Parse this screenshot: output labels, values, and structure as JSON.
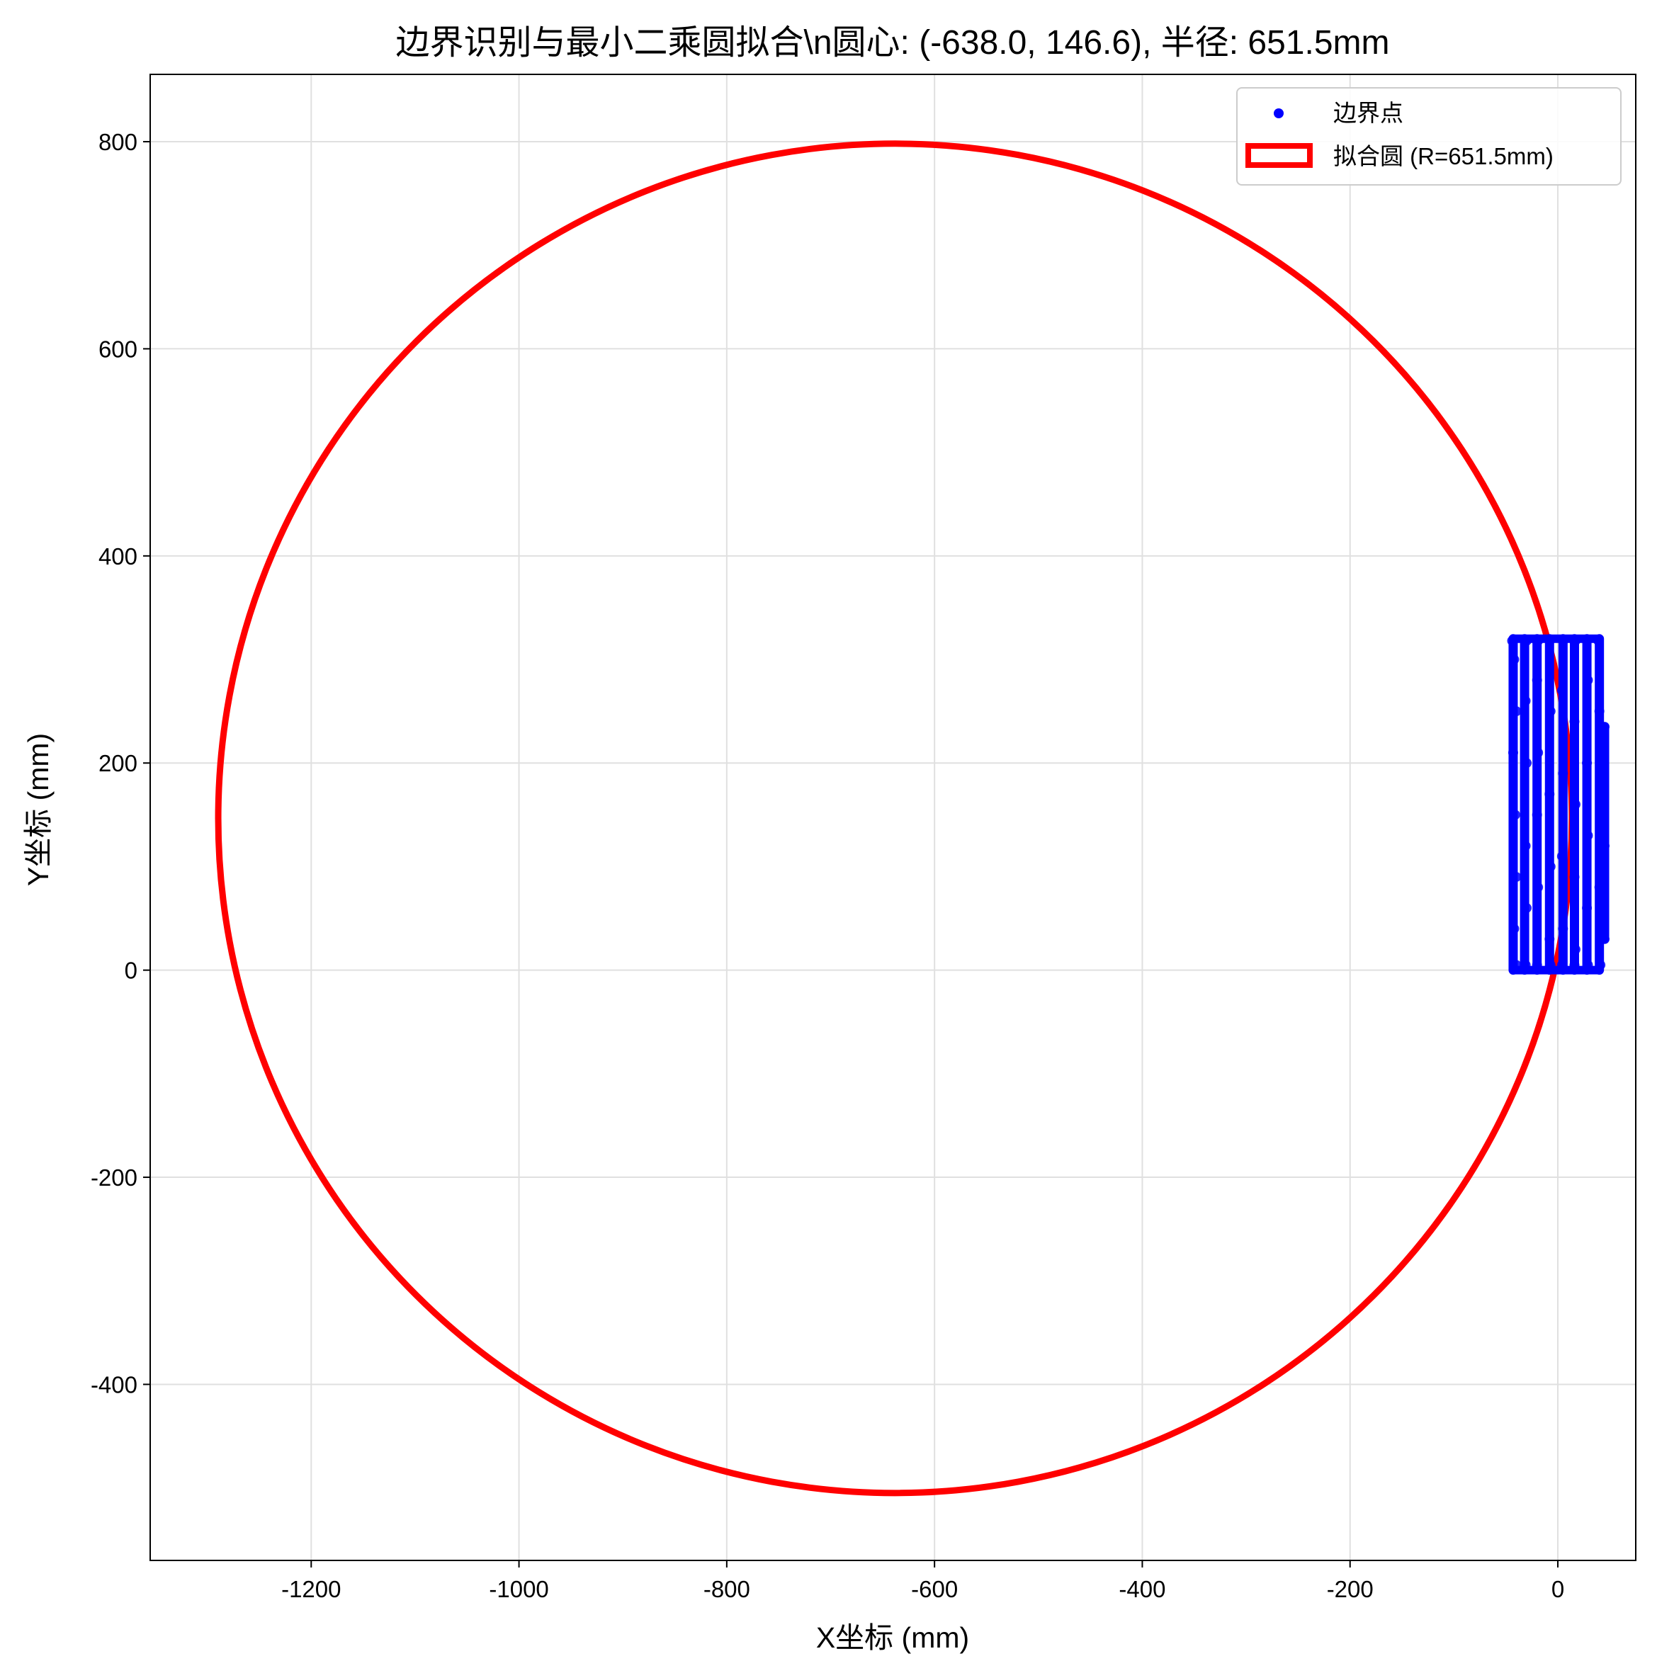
{
  "chart_data": {
    "type": "scatter",
    "title": "边界识别与最小二乘圆拟合\\n圆心: (-638.0, 146.6), 半径: 651.5mm",
    "xlabel": "X坐标 (mm)",
    "ylabel": "Y坐标 (mm)",
    "xlim": [
      -1355,
      75
    ],
    "ylim": [
      -570,
      865
    ],
    "x_ticks": [
      -1200,
      -1000,
      -800,
      -600,
      -400,
      -200,
      0
    ],
    "y_ticks": [
      -400,
      -200,
      0,
      200,
      400,
      600,
      800
    ],
    "x_tick_labels": [
      "-1200",
      "-1000",
      "-800",
      "-600",
      "-400",
      "-200",
      "0"
    ],
    "y_tick_labels": [
      "-400",
      "-200",
      "0",
      "200",
      "400",
      "600",
      "800"
    ],
    "grid": true,
    "legend_position": "top-right",
    "colors": {
      "points": "#0000ff",
      "circle": "#ff0000",
      "grid": "#e0e0e0"
    },
    "series": [
      {
        "name": "边界点",
        "kind": "scatter",
        "region": {
          "x_range": [
            -45,
            45
          ],
          "y_range": [
            0,
            320
          ]
        },
        "sweep_columns_x": [
          -43,
          -32,
          -20,
          -8,
          5,
          16,
          28,
          40,
          45
        ],
        "points": [
          [
            -44,
            318
          ],
          [
            -42,
            300
          ],
          [
            -40,
            250
          ],
          [
            -43,
            210
          ],
          [
            -41,
            150
          ],
          [
            -40,
            90
          ],
          [
            -42,
            40
          ],
          [
            -40,
            5
          ],
          [
            -30,
            318
          ],
          [
            -31,
            260
          ],
          [
            -30,
            200
          ],
          [
            -31,
            120
          ],
          [
            -30,
            60
          ],
          [
            -31,
            5
          ],
          [
            -19,
            318
          ],
          [
            -20,
            280
          ],
          [
            -19,
            210
          ],
          [
            -20,
            150
          ],
          [
            -19,
            80
          ],
          [
            -20,
            5
          ],
          [
            -8,
            318
          ],
          [
            -7,
            250
          ],
          [
            -8,
            170
          ],
          [
            -7,
            100
          ],
          [
            -8,
            30
          ],
          [
            -7,
            5
          ],
          [
            5,
            318
          ],
          [
            4,
            270
          ],
          [
            5,
            190
          ],
          [
            4,
            110
          ],
          [
            5,
            40
          ],
          [
            4,
            5
          ],
          [
            17,
            318
          ],
          [
            16,
            240
          ],
          [
            17,
            160
          ],
          [
            16,
            90
          ],
          [
            17,
            20
          ],
          [
            16,
            5
          ],
          [
            28,
            318
          ],
          [
            29,
            280
          ],
          [
            28,
            200
          ],
          [
            29,
            130
          ],
          [
            28,
            60
          ],
          [
            29,
            5
          ],
          [
            39,
            318
          ],
          [
            40,
            250
          ],
          [
            41,
            160
          ],
          [
            40,
            80
          ],
          [
            41,
            5
          ],
          [
            45,
            235
          ],
          [
            44,
            180
          ],
          [
            45,
            120
          ],
          [
            44,
            60
          ],
          [
            45,
            30
          ]
        ]
      },
      {
        "name": "拟合圆 (R=651.5mm)",
        "kind": "circle",
        "center": [
          -638.0,
          146.6
        ],
        "radius": 651.5
      }
    ]
  }
}
